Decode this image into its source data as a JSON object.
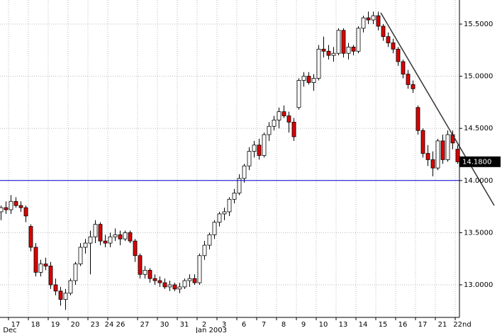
{
  "chart_data": {
    "type": "candlestick",
    "ylim": [
      12.6875,
      15.731
    ],
    "yticks": [
      {
        "value": 13,
        "label": "13.0000"
      },
      {
        "value": 13.5,
        "label": "13.5000"
      },
      {
        "value": 14,
        "label": "14.0000"
      },
      {
        "value": 14.5,
        "label": "14.5000"
      },
      {
        "value": 15,
        "label": "15.0000"
      },
      {
        "value": 15.5,
        "label": "15.5000"
      }
    ],
    "grid": true,
    "up_color": "#ffffff",
    "down_color": "#dd0000",
    "reference_line": {
      "value": 14,
      "color": "#0000cc"
    },
    "last_price": {
      "value": 14.18,
      "label": "14.1800"
    },
    "days": [
      {
        "label": null,
        "open": [
          13.7,
          13.74
        ],
        "high": [
          13.76,
          13.8
        ],
        "low": [
          13.62,
          13.68
        ],
        "close": [
          13.74,
          13.72
        ]
      },
      {
        "label": "17",
        "sublabel": "Dec",
        "open": [
          13.72,
          13.8,
          13.76,
          13.74
        ],
        "high": [
          13.86,
          13.84,
          13.8,
          13.76
        ],
        "low": [
          13.68,
          13.74,
          13.7,
          13.6
        ],
        "close": [
          13.8,
          13.76,
          13.74,
          13.66
        ]
      },
      {
        "label": "18",
        "open": [
          13.56,
          13.36,
          13.12,
          13.2
        ],
        "high": [
          13.58,
          13.4,
          13.24,
          13.26
        ],
        "low": [
          13.32,
          13.08,
          13.08,
          13.14
        ],
        "close": [
          13.36,
          13.12,
          13.2,
          13.18
        ]
      },
      {
        "label": "19",
        "open": [
          13.18,
          13.0,
          12.94,
          12.86
        ],
        "high": [
          13.22,
          13.06,
          12.98,
          12.96
        ],
        "low": [
          12.96,
          12.9,
          12.8,
          12.76
        ],
        "close": [
          13.0,
          12.94,
          12.86,
          12.92
        ]
      },
      {
        "label": "20",
        "open": [
          12.92,
          13.04,
          13.2,
          13.36
        ],
        "high": [
          13.06,
          13.22,
          13.4,
          13.44
        ],
        "low": [
          12.9,
          13.0,
          13.18,
          13.3
        ],
        "close": [
          13.04,
          13.2,
          13.36,
          13.4
        ]
      },
      {
        "label": "23",
        "open": [
          13.4,
          13.46,
          13.58,
          13.42
        ],
        "high": [
          13.52,
          13.62,
          13.6,
          13.48
        ],
        "low": [
          13.1,
          13.4,
          13.38,
          13.36
        ],
        "close": [
          13.46,
          13.58,
          13.42,
          13.4
        ]
      },
      {
        "label": "24 26",
        "open": [
          13.4,
          13.46,
          13.48,
          13.44,
          13.5,
          13.42
        ],
        "high": [
          13.5,
          13.54,
          13.52,
          13.52,
          13.52,
          13.44
        ],
        "low": [
          13.36,
          13.42,
          13.38,
          13.42,
          13.4,
          13.22
        ],
        "close": [
          13.46,
          13.48,
          13.44,
          13.5,
          13.42,
          13.28
        ]
      },
      {
        "label": "27",
        "open": [
          13.28,
          13.1,
          13.14,
          13.06
        ],
        "high": [
          13.3,
          13.18,
          13.16,
          13.1
        ],
        "low": [
          13.06,
          13.06,
          13.02,
          13.0
        ],
        "close": [
          13.1,
          13.14,
          13.06,
          13.04
        ]
      },
      {
        "label": "30",
        "open": [
          13.04,
          13.02,
          12.98,
          13.0
        ],
        "high": [
          13.08,
          13.06,
          13.04,
          13.02
        ],
        "low": [
          12.98,
          12.96,
          12.94,
          12.94
        ],
        "close": [
          13.02,
          12.98,
          13.0,
          12.96
        ]
      },
      {
        "label": "31",
        "open": [
          12.96,
          12.98,
          13.04,
          13.06
        ],
        "high": [
          13.02,
          13.06,
          13.1,
          13.1
        ],
        "low": [
          12.92,
          12.96,
          12.98,
          13.0
        ],
        "close": [
          12.98,
          13.04,
          13.06,
          13.02
        ]
      },
      {
        "label": "2",
        "sublabel": "Jan 2003",
        "open": [
          13.02,
          13.28,
          13.38,
          13.48
        ],
        "high": [
          13.3,
          13.42,
          13.5,
          13.62
        ],
        "low": [
          13.0,
          13.24,
          13.34,
          13.44
        ],
        "close": [
          13.28,
          13.38,
          13.48,
          13.6
        ]
      },
      {
        "label": "3",
        "open": [
          13.6,
          13.68,
          13.7,
          13.82
        ],
        "high": [
          13.7,
          13.74,
          13.84,
          13.92
        ],
        "low": [
          13.56,
          13.62,
          13.66,
          13.78
        ],
        "close": [
          13.68,
          13.7,
          13.82,
          13.88
        ]
      },
      {
        "label": "6",
        "open": [
          13.88,
          14.02,
          14.14,
          14.28
        ],
        "high": [
          14.06,
          14.16,
          14.32,
          14.38
        ],
        "low": [
          13.86,
          13.98,
          14.1,
          14.22
        ],
        "close": [
          14.02,
          14.14,
          14.28,
          14.34
        ]
      },
      {
        "label": "7",
        "open": [
          14.34,
          14.24,
          14.44,
          14.52
        ],
        "high": [
          14.4,
          14.46,
          14.56,
          14.62
        ],
        "low": [
          14.2,
          14.22,
          14.38,
          14.48
        ],
        "close": [
          14.24,
          14.44,
          14.52,
          14.58
        ]
      },
      {
        "label": "8",
        "open": [
          14.58,
          14.66,
          14.62,
          14.56
        ],
        "high": [
          14.7,
          14.72,
          14.66,
          14.6
        ],
        "low": [
          14.5,
          14.6,
          14.46,
          14.38
        ],
        "close": [
          14.66,
          14.62,
          14.56,
          14.42
        ]
      },
      {
        "label": "9",
        "open": [
          14.7,
          14.96,
          15.0,
          14.94
        ],
        "high": [
          14.98,
          15.04,
          15.04,
          15.02
        ],
        "low": [
          14.68,
          14.9,
          14.92,
          14.86
        ],
        "close": [
          14.96,
          15.0,
          14.94,
          14.98
        ]
      },
      {
        "label": "10",
        "open": [
          14.98,
          15.26,
          15.24,
          15.2
        ],
        "high": [
          15.3,
          15.38,
          15.3,
          15.28
        ],
        "low": [
          14.96,
          15.18,
          15.16,
          15.14
        ],
        "close": [
          15.26,
          15.24,
          15.2,
          15.22
        ]
      },
      {
        "label": "13",
        "open": [
          15.22,
          15.44,
          15.22,
          15.28
        ],
        "high": [
          15.46,
          15.46,
          15.32,
          15.3
        ],
        "low": [
          15.2,
          15.18,
          15.16,
          15.2
        ],
        "close": [
          15.44,
          15.22,
          15.28,
          15.24
        ]
      },
      {
        "label": "14",
        "open": [
          15.24,
          15.46,
          15.56,
          15.54
        ],
        "high": [
          15.48,
          15.58,
          15.62,
          15.62
        ],
        "low": [
          15.22,
          15.42,
          15.5,
          15.5
        ],
        "close": [
          15.46,
          15.56,
          15.54,
          15.58
        ]
      },
      {
        "label": "15",
        "open": [
          15.58,
          15.48,
          15.38,
          15.32
        ],
        "high": [
          15.62,
          15.5,
          15.42,
          15.36
        ],
        "low": [
          15.44,
          15.34,
          15.28,
          15.22
        ],
        "close": [
          15.48,
          15.38,
          15.32,
          15.26
        ]
      },
      {
        "label": "16",
        "open": [
          15.26,
          15.14,
          15.02,
          14.92
        ],
        "high": [
          15.28,
          15.16,
          15.06,
          14.96
        ],
        "low": [
          15.1,
          14.98,
          14.88,
          14.84
        ],
        "close": [
          15.14,
          15.02,
          14.92,
          14.88
        ]
      },
      {
        "label": "17",
        "open": [
          14.7,
          14.48,
          14.26,
          14.2
        ],
        "high": [
          14.72,
          14.5,
          14.34,
          14.28
        ],
        "low": [
          14.44,
          14.22,
          14.14,
          14.04
        ],
        "close": [
          14.48,
          14.26,
          14.2,
          14.12
        ]
      },
      {
        "label": "21",
        "open": [
          14.12,
          14.38,
          14.2,
          14.44
        ],
        "high": [
          14.4,
          14.44,
          14.48,
          14.48
        ],
        "low": [
          14.1,
          14.16,
          14.18,
          14.3
        ],
        "close": [
          14.38,
          14.2,
          14.44,
          14.36
        ]
      },
      {
        "label": "22nd",
        "open": [
          14.3
        ],
        "high": [
          14.34
        ],
        "low": [
          14.16
        ],
        "close": [
          14.18
        ]
      }
    ]
  }
}
